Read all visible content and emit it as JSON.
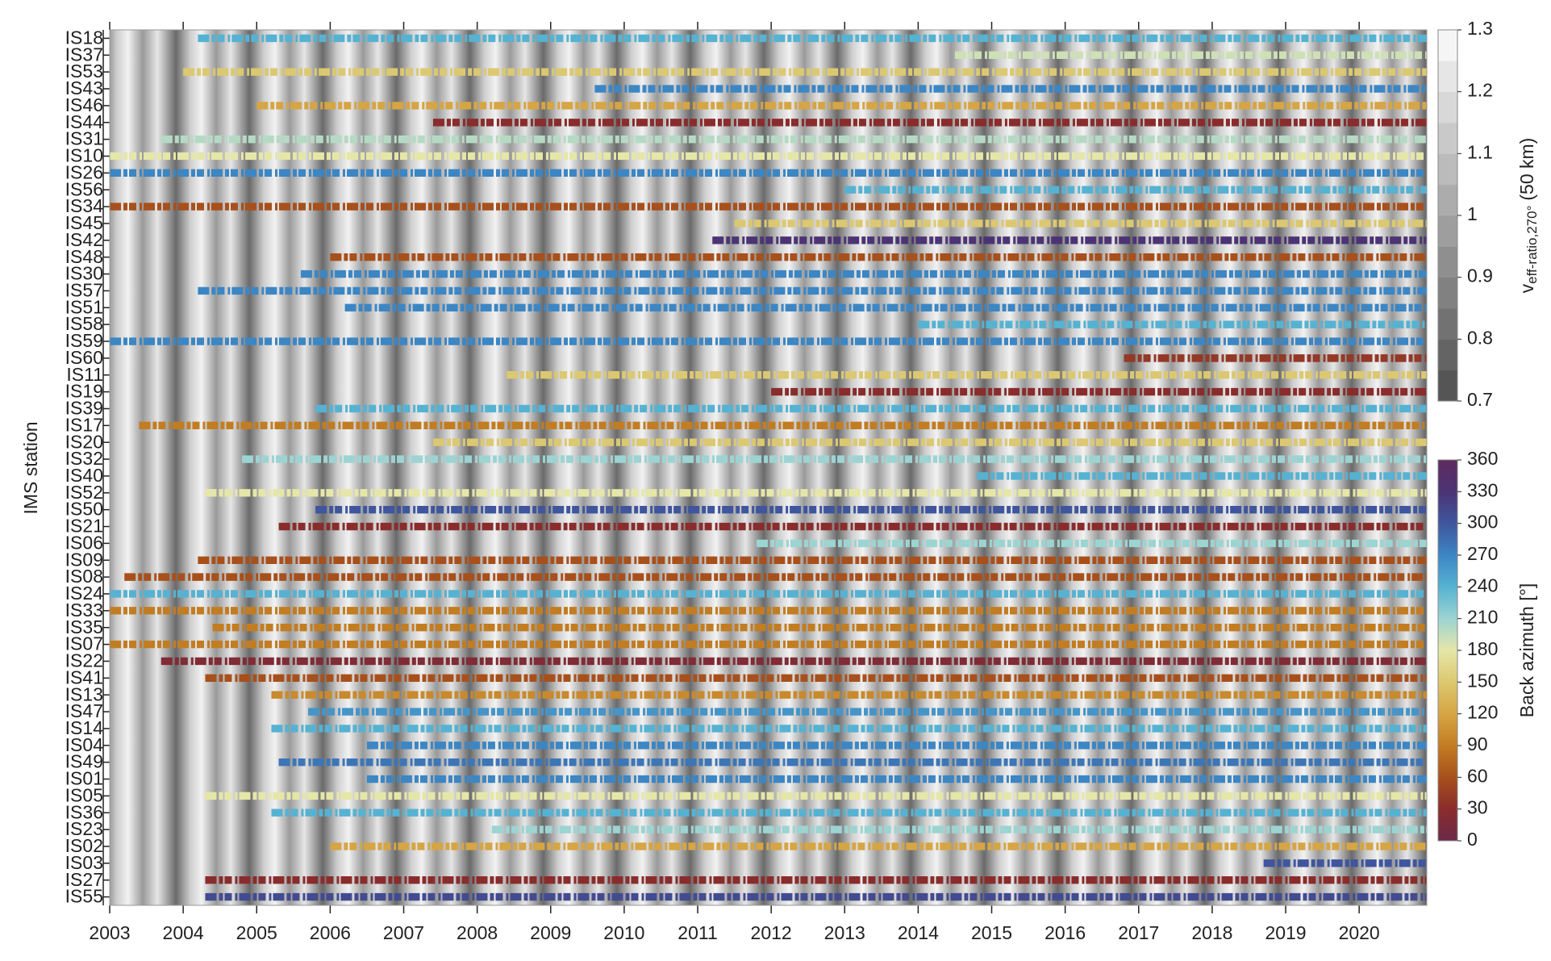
{
  "chart_data": {
    "type": "heatmap",
    "y_label": "IMS station",
    "stations": [
      "IS18",
      "IS37",
      "IS53",
      "IS43",
      "IS46",
      "IS44",
      "IS31",
      "IS10",
      "IS26",
      "IS56",
      "IS34",
      "IS45",
      "IS42",
      "IS48",
      "IS30",
      "IS57",
      "IS51",
      "IS58",
      "IS59",
      "IS60",
      "IS11",
      "IS19",
      "IS39",
      "IS17",
      "IS20",
      "IS32",
      "IS40",
      "IS52",
      "IS50",
      "IS21",
      "IS06",
      "IS09",
      "IS08",
      "IS24",
      "IS33",
      "IS35",
      "IS07",
      "IS22",
      "IS41",
      "IS13",
      "IS47",
      "IS14",
      "IS04",
      "IS49",
      "IS01",
      "IS05",
      "IS36",
      "IS23",
      "IS02",
      "IS03",
      "IS27",
      "IS55"
    ],
    "start": [
      2004.2,
      2014.5,
      2004.0,
      2009.6,
      2005.0,
      2007.4,
      2003.7,
      2003.0,
      2003.0,
      2013.0,
      2003.0,
      2011.5,
      2011.2,
      2006.0,
      2005.6,
      2004.2,
      2006.2,
      2014.0,
      2003.0,
      2016.8,
      2008.4,
      2012.0,
      2005.8,
      2003.4,
      2007.4,
      2004.8,
      2014.8,
      2004.3,
      2005.8,
      2005.3,
      2011.8,
      2004.2,
      2003.2,
      2003.0,
      2003.0,
      2004.4,
      2003.0,
      2003.7,
      2004.3,
      2005.2,
      2005.7,
      2005.2,
      2006.5,
      2005.3,
      2006.5,
      2004.3,
      2005.2,
      2008.2,
      2006.0,
      2018.7,
      2004.3,
      2004.3
    ],
    "back_azimuth": [
      240,
      190,
      150,
      270,
      120,
      30,
      200,
      180,
      270,
      240,
      60,
      150,
      330,
      60,
      270,
      270,
      270,
      240,
      270,
      40,
      150,
      30,
      240,
      90,
      150,
      210,
      240,
      180,
      300,
      30,
      210,
      60,
      60,
      240,
      90,
      90,
      90,
      20,
      60,
      100,
      260,
      240,
      270,
      280,
      270,
      180,
      240,
      210,
      120,
      300,
      30,
      310
    ],
    "x_ticks": [
      2003,
      2004,
      2005,
      2006,
      2007,
      2008,
      2009,
      2010,
      2011,
      2012,
      2013,
      2014,
      2015,
      2016,
      2017,
      2018,
      2019,
      2020
    ],
    "xlim": [
      2003,
      2020.92
    ],
    "veff_colorbar": {
      "label_main": "v",
      "label_sub": "eff-ratio,270°",
      "label_tail": "(50 km)",
      "lim": [
        0.7,
        1.3
      ],
      "ticks": [
        0.7,
        0.8,
        0.9,
        1,
        1.1,
        1.2,
        1.3
      ]
    },
    "azimuth_colorbar": {
      "label": "Back azimuth [°]",
      "lim": [
        0,
        360
      ],
      "ticks": [
        0,
        30,
        60,
        90,
        120,
        150,
        180,
        210,
        240,
        270,
        300,
        330,
        360
      ],
      "colormap": [
        "#6b2a4a",
        "#8a2c2c",
        "#a8501c",
        "#c27d22",
        "#d6a544",
        "#dcc870",
        "#e6e6a8",
        "#9cd4d2",
        "#56b2d2",
        "#3c86c4",
        "#3f569e",
        "#4c3474",
        "#5e2a5e"
      ]
    }
  }
}
